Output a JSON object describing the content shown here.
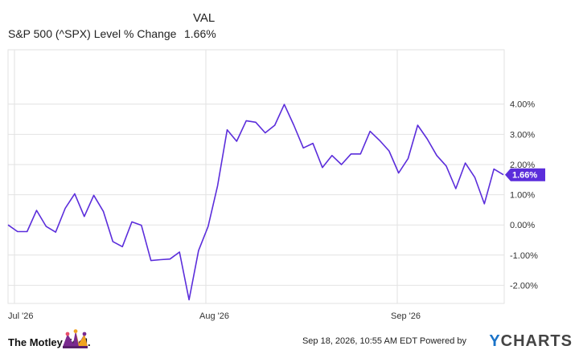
{
  "legend": {
    "column_header": "VAL",
    "series_label": "S&P 500 (^SPX) Level % Change",
    "series_value": "1.66%"
  },
  "chart_data": {
    "type": "line",
    "x_axis_labels": [
      "Jul '26",
      "Aug '26",
      "Sep '26"
    ],
    "y_axis_labels": [
      "4.00%",
      "3.00%",
      "2.00%",
      "1.00%",
      "0.00%",
      "-1.00%",
      "-2.00%"
    ],
    "ylim": [
      -2.6,
      5.8
    ],
    "grid": true,
    "series": [
      {
        "name": "S&P 500 (^SPX) Level % Change",
        "color": "#5b2ddb",
        "last_value_label": "1.66%",
        "values": [
          0.0,
          -0.22,
          -0.22,
          0.48,
          -0.05,
          -0.24,
          0.55,
          1.03,
          0.28,
          0.98,
          0.45,
          -0.55,
          -0.72,
          0.1,
          -0.01,
          -1.18,
          -1.15,
          -1.13,
          -0.9,
          -2.48,
          -0.85,
          -0.05,
          1.3,
          3.15,
          2.77,
          3.45,
          3.4,
          3.05,
          3.3,
          3.99,
          3.3,
          2.55,
          2.7,
          1.9,
          2.3,
          2.0,
          2.35,
          2.35,
          3.1,
          2.8,
          2.45,
          1.72,
          2.2,
          3.3,
          2.85,
          2.3,
          1.95,
          1.2,
          2.05,
          1.57,
          0.7,
          1.85,
          1.66
        ]
      }
    ]
  },
  "footer": {
    "brand": "The Motley Fool.",
    "timestamp": "Sep 18, 2026, 10:55 AM EDT Powered by",
    "ycharts_y": "Y",
    "ycharts_rest": "CHARTS"
  }
}
